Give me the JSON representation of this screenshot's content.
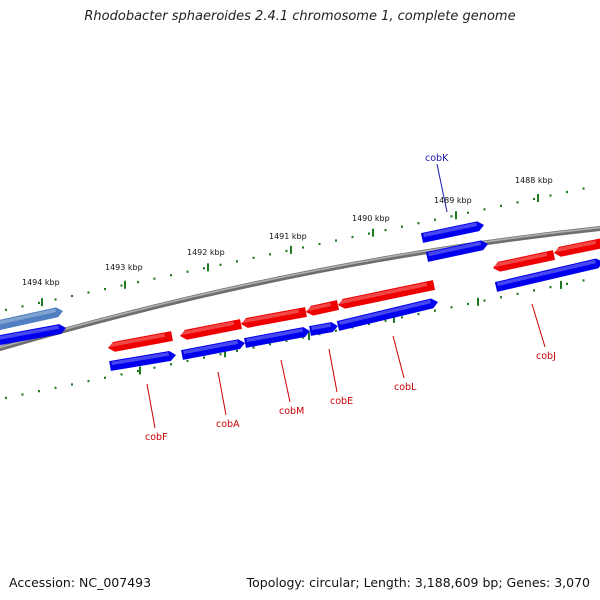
{
  "title": "Rhodobacter sphaeroides 2.4.1 chromosome 1, complete genome",
  "footer": {
    "accession": "Accession: NC_007493",
    "summary": "Topology: circular; Length: 3,188,609 bp; Genes: 3,070"
  },
  "colors": {
    "forward_strand": "#0000ee",
    "reverse_strand": "#ee0000",
    "highlight_gene": "#4f7fc0",
    "tick": "#1e7a1e",
    "backbone": "#8a8a8a",
    "label_blue": "#1a1aaa",
    "label_red": "#cc0000"
  },
  "ticks": [
    {
      "label": "1494 kbp"
    },
    {
      "label": "1493 kbp"
    },
    {
      "label": "1492 kbp"
    },
    {
      "label": "1491 kbp"
    },
    {
      "label": "1490 kbp"
    },
    {
      "label": "1489 kbp"
    },
    {
      "label": "1488 kbp"
    }
  ],
  "genes": [
    {
      "name": "cobK"
    },
    {
      "name": "cobF"
    },
    {
      "name": "cobA"
    },
    {
      "name": "cobM"
    },
    {
      "name": "cobE"
    },
    {
      "name": "cobL"
    },
    {
      "name": "cobJ"
    }
  ]
}
